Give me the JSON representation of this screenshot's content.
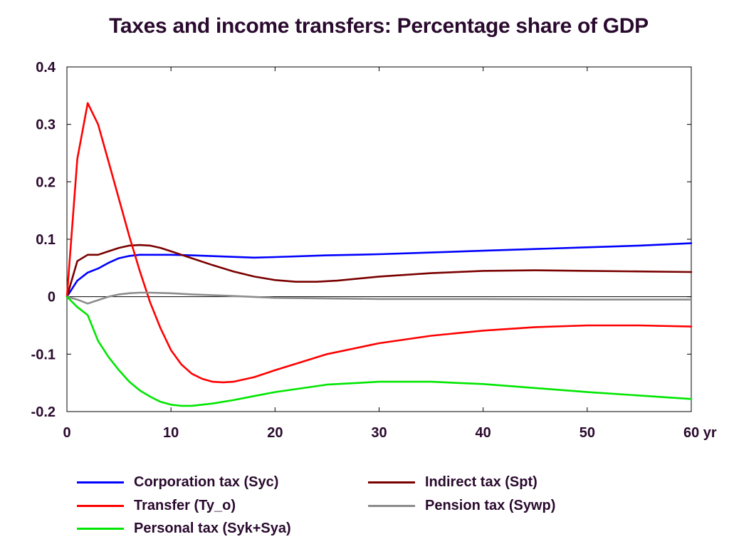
{
  "chart_data": {
    "type": "line",
    "title": "Taxes and income transfers: Percentage share of GDP",
    "xlabel": "",
    "ylabel": "",
    "xlim": [
      0,
      60
    ],
    "ylim": [
      -0.2,
      0.4
    ],
    "x_ticks": [
      0,
      10,
      20,
      30,
      40,
      50,
      60
    ],
    "x_tick_labels": [
      "0",
      "10",
      "20",
      "30",
      "40",
      "50",
      "60 yr"
    ],
    "y_ticks": [
      0.4,
      0.3,
      0.2,
      0.1,
      0,
      -0.1,
      -0.2
    ],
    "y_tick_labels": [
      "0.4",
      "0.3",
      "0.2",
      "0.1",
      "0",
      "-0.1",
      "-0.2"
    ],
    "grid": false,
    "zero_line": true,
    "legend_placement": "bottom",
    "series": [
      {
        "name": "Corporation tax (Syc)",
        "color": "#0000ff",
        "x": [
          0,
          1,
          2,
          3,
          4,
          5,
          6,
          7,
          8,
          10,
          12,
          15,
          18,
          20,
          25,
          30,
          35,
          40,
          45,
          50,
          55,
          60
        ],
        "y": [
          0,
          0.028,
          0.042,
          0.049,
          0.059,
          0.067,
          0.071,
          0.073,
          0.073,
          0.073,
          0.072,
          0.07,
          0.068,
          0.069,
          0.072,
          0.074,
          0.077,
          0.08,
          0.083,
          0.086,
          0.089,
          0.093
        ]
      },
      {
        "name": "Indirect tax (Spt)",
        "color": "#7a0000",
        "x": [
          0,
          1,
          2,
          3,
          4,
          5,
          6,
          7,
          8,
          9,
          10,
          12,
          14,
          16,
          18,
          20,
          22,
          24,
          26,
          30,
          35,
          40,
          45,
          50,
          55,
          60
        ],
        "y": [
          0,
          0.062,
          0.073,
          0.073,
          0.079,
          0.085,
          0.089,
          0.09,
          0.089,
          0.085,
          0.079,
          0.067,
          0.055,
          0.044,
          0.035,
          0.029,
          0.026,
          0.026,
          0.028,
          0.035,
          0.041,
          0.045,
          0.046,
          0.045,
          0.044,
          0.043
        ]
      },
      {
        "name": "Transfer (Ty_o)",
        "color": "#ff0000",
        "x": [
          0,
          1,
          2,
          3,
          4,
          5,
          6,
          7,
          8,
          9,
          10,
          11,
          12,
          13,
          14,
          15,
          16,
          18,
          20,
          25,
          30,
          35,
          40,
          45,
          50,
          55,
          60
        ],
        "y": [
          0,
          0.24,
          0.337,
          0.3,
          0.235,
          0.17,
          0.105,
          0.045,
          -0.01,
          -0.055,
          -0.093,
          -0.118,
          -0.134,
          -0.143,
          -0.148,
          -0.149,
          -0.148,
          -0.14,
          -0.128,
          -0.1,
          -0.081,
          -0.068,
          -0.059,
          -0.053,
          -0.05,
          -0.05,
          -0.052
        ]
      },
      {
        "name": "Pension tax (Sywp)",
        "color": "#8c8c8c",
        "x": [
          0,
          1,
          2,
          3,
          4,
          5,
          6,
          7,
          8,
          10,
          12,
          15,
          20,
          30,
          40,
          50,
          60
        ],
        "y": [
          0,
          -0.005,
          -0.012,
          -0.006,
          0,
          0.004,
          0.006,
          0.007,
          0.007,
          0.006,
          0.004,
          0.002,
          -0.002,
          -0.004,
          -0.004,
          -0.005,
          -0.005
        ]
      },
      {
        "name": "Personal tax (Syk+Sya)",
        "color": "#00e600",
        "x": [
          0,
          1,
          2,
          3,
          4,
          5,
          6,
          7,
          8,
          9,
          10,
          11,
          12,
          14,
          16,
          18,
          20,
          25,
          30,
          35,
          40,
          45,
          50,
          55,
          60
        ],
        "y": [
          0,
          -0.018,
          -0.032,
          -0.077,
          -0.105,
          -0.128,
          -0.148,
          -0.163,
          -0.174,
          -0.183,
          -0.188,
          -0.19,
          -0.19,
          -0.186,
          -0.18,
          -0.173,
          -0.166,
          -0.153,
          -0.148,
          -0.148,
          -0.152,
          -0.159,
          -0.166,
          -0.172,
          -0.178
        ]
      }
    ]
  },
  "legend": {
    "items": [
      {
        "label": "Corporation tax (Syc)",
        "color": "#0000ff"
      },
      {
        "label": "Indirect tax (Spt)",
        "color": "#7a0000"
      },
      {
        "label": "Transfer (Ty_o)",
        "color": "#ff0000"
      },
      {
        "label": "Pension tax (Sywp)",
        "color": "#8c8c8c"
      },
      {
        "label": "Personal tax (Syk+Sya)",
        "color": "#00e600"
      }
    ]
  }
}
